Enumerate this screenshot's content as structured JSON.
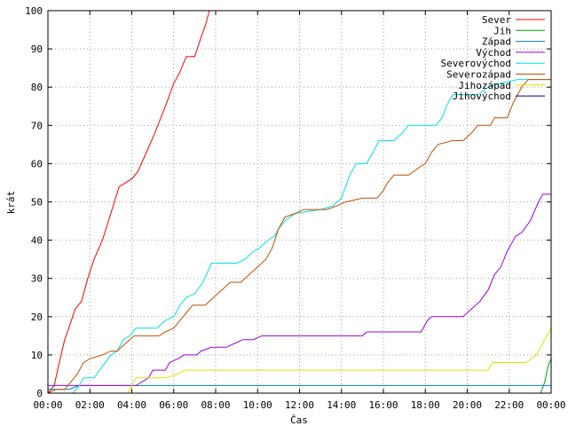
{
  "chart_data": {
    "type": "line",
    "title": "",
    "xlabel": "Čas",
    "ylabel": "krát",
    "xlim": [
      0,
      24
    ],
    "ylim": [
      0,
      100
    ],
    "x_ticks": [
      {
        "value": 0,
        "label": "00:00"
      },
      {
        "value": 2,
        "label": "02:00"
      },
      {
        "value": 4,
        "label": "04:00"
      },
      {
        "value": 6,
        "label": "06:00"
      },
      {
        "value": 8,
        "label": "08:00"
      },
      {
        "value": 10,
        "label": "10:00"
      },
      {
        "value": 12,
        "label": "12:00"
      },
      {
        "value": 14,
        "label": "14:00"
      },
      {
        "value": 16,
        "label": "16:00"
      },
      {
        "value": 18,
        "label": "18:00"
      },
      {
        "value": 20,
        "label": "20:00"
      },
      {
        "value": 22,
        "label": "22:00"
      },
      {
        "value": 24,
        "label": "00:00"
      }
    ],
    "y_ticks": [
      0,
      10,
      20,
      30,
      40,
      50,
      60,
      70,
      80,
      90,
      100
    ],
    "grid": true,
    "legend_position": "top-right",
    "series": [
      {
        "name": "Sever",
        "color": "#ff0000",
        "points": [
          [
            0,
            0
          ],
          [
            0.3,
            2
          ],
          [
            0.5,
            7
          ],
          [
            0.8,
            14
          ],
          [
            1.0,
            17
          ],
          [
            1.3,
            22
          ],
          [
            1.6,
            24
          ],
          [
            1.9,
            30
          ],
          [
            2.2,
            35
          ],
          [
            2.6,
            40
          ],
          [
            3.0,
            47
          ],
          [
            3.4,
            54
          ],
          [
            3.7,
            55
          ],
          [
            4.0,
            56
          ],
          [
            4.3,
            58
          ],
          [
            4.7,
            63
          ],
          [
            5.1,
            68
          ],
          [
            5.6,
            75
          ],
          [
            6.0,
            81
          ],
          [
            6.3,
            84
          ],
          [
            6.6,
            88
          ],
          [
            7.0,
            88
          ],
          [
            7.3,
            93
          ],
          [
            7.5,
            96
          ],
          [
            7.7,
            100
          ]
        ]
      },
      {
        "name": "Jih",
        "color": "#00a000",
        "points": [
          [
            23.5,
            0
          ],
          [
            23.7,
            3
          ],
          [
            23.85,
            7
          ],
          [
            24,
            9
          ]
        ]
      },
      {
        "name": "Západ",
        "color": "#0080c0",
        "points": [
          [
            0,
            1
          ],
          [
            1.0,
            1
          ],
          [
            1.5,
            2
          ],
          [
            24,
            2
          ]
        ]
      },
      {
        "name": "Východ",
        "color": "#a000e0",
        "points": [
          [
            0,
            2
          ],
          [
            3.5,
            2
          ],
          [
            4.2,
            2
          ],
          [
            4.5,
            3
          ],
          [
            4.8,
            4
          ],
          [
            5.0,
            6
          ],
          [
            5.6,
            6
          ],
          [
            5.8,
            8
          ],
          [
            6.2,
            9
          ],
          [
            6.5,
            10
          ],
          [
            7.1,
            10
          ],
          [
            7.3,
            11
          ],
          [
            7.8,
            12
          ],
          [
            8.5,
            12
          ],
          [
            8.9,
            13
          ],
          [
            9.3,
            14
          ],
          [
            9.8,
            14
          ],
          [
            10.2,
            15
          ],
          [
            11.0,
            15
          ],
          [
            15.0,
            15
          ],
          [
            15.2,
            16
          ],
          [
            17.8,
            16
          ],
          [
            18.1,
            19
          ],
          [
            18.3,
            20
          ],
          [
            19.8,
            20
          ],
          [
            20.2,
            22
          ],
          [
            20.6,
            24
          ],
          [
            21.0,
            27
          ],
          [
            21.3,
            31
          ],
          [
            21.6,
            33
          ],
          [
            21.9,
            37
          ],
          [
            22.3,
            41
          ],
          [
            22.6,
            42
          ],
          [
            23.0,
            45
          ],
          [
            23.4,
            50
          ],
          [
            23.6,
            52
          ],
          [
            24,
            52
          ]
        ]
      },
      {
        "name": "Severovýchod",
        "color": "#00e0e0",
        "points": [
          [
            0,
            0
          ],
          [
            1.2,
            0
          ],
          [
            1.5,
            2
          ],
          [
            1.7,
            4
          ],
          [
            2.2,
            4
          ],
          [
            2.6,
            7
          ],
          [
            3.0,
            10
          ],
          [
            3.3,
            11
          ],
          [
            3.6,
            14
          ],
          [
            3.9,
            15
          ],
          [
            4.2,
            17
          ],
          [
            5.2,
            17
          ],
          [
            5.6,
            19
          ],
          [
            6.0,
            20
          ],
          [
            6.3,
            23
          ],
          [
            6.6,
            25
          ],
          [
            7.0,
            26
          ],
          [
            7.4,
            29
          ],
          [
            7.8,
            34
          ],
          [
            8.2,
            34
          ],
          [
            9.0,
            34
          ],
          [
            9.4,
            35
          ],
          [
            9.8,
            37
          ],
          [
            10.1,
            38
          ],
          [
            10.5,
            40
          ],
          [
            10.8,
            41
          ],
          [
            11.0,
            43
          ],
          [
            11.3,
            45
          ],
          [
            11.8,
            47
          ],
          [
            13.0,
            48
          ],
          [
            13.6,
            49
          ],
          [
            14.0,
            51
          ],
          [
            14.4,
            57
          ],
          [
            14.7,
            60
          ],
          [
            15.2,
            60
          ],
          [
            15.5,
            63
          ],
          [
            15.8,
            66
          ],
          [
            16.5,
            66
          ],
          [
            16.9,
            68
          ],
          [
            17.2,
            70
          ],
          [
            18.5,
            70
          ],
          [
            18.8,
            72
          ],
          [
            19.0,
            75
          ],
          [
            19.3,
            78
          ],
          [
            20.5,
            78
          ],
          [
            21.0,
            80
          ],
          [
            21.6,
            81
          ],
          [
            22.4,
            82
          ],
          [
            23.0,
            82
          ],
          [
            24,
            82
          ]
        ]
      },
      {
        "name": "Severozápad",
        "color": "#c05000",
        "points": [
          [
            0,
            0
          ],
          [
            0.4,
            1
          ],
          [
            0.8,
            1
          ],
          [
            1.1,
            3
          ],
          [
            1.4,
            5
          ],
          [
            1.7,
            8
          ],
          [
            2.0,
            9
          ],
          [
            2.6,
            10
          ],
          [
            3.0,
            11
          ],
          [
            3.3,
            11
          ],
          [
            3.7,
            13
          ],
          [
            4.1,
            15
          ],
          [
            5.3,
            15
          ],
          [
            5.6,
            16
          ],
          [
            6.0,
            17
          ],
          [
            6.3,
            19
          ],
          [
            6.6,
            21
          ],
          [
            6.9,
            23
          ],
          [
            7.5,
            23
          ],
          [
            7.9,
            25
          ],
          [
            8.3,
            27
          ],
          [
            8.7,
            29
          ],
          [
            9.2,
            29
          ],
          [
            9.6,
            31
          ],
          [
            10.0,
            33
          ],
          [
            10.4,
            35
          ],
          [
            10.7,
            38
          ],
          [
            11.0,
            43
          ],
          [
            11.3,
            46
          ],
          [
            11.8,
            47
          ],
          [
            12.2,
            48
          ],
          [
            13.3,
            48
          ],
          [
            13.8,
            49
          ],
          [
            14.2,
            50
          ],
          [
            15.0,
            51
          ],
          [
            15.7,
            51
          ],
          [
            16.0,
            53
          ],
          [
            16.2,
            55
          ],
          [
            16.5,
            57
          ],
          [
            17.2,
            57
          ],
          [
            17.7,
            59
          ],
          [
            18.0,
            60
          ],
          [
            18.3,
            63
          ],
          [
            18.6,
            65
          ],
          [
            19.3,
            66
          ],
          [
            19.8,
            66
          ],
          [
            20.2,
            68
          ],
          [
            20.5,
            70
          ],
          [
            21.1,
            70
          ],
          [
            21.3,
            72
          ],
          [
            21.9,
            72
          ],
          [
            22.2,
            76
          ],
          [
            22.6,
            80
          ],
          [
            22.9,
            82
          ],
          [
            24,
            82
          ]
        ]
      },
      {
        "name": "Jihozápad",
        "color": "#e0e000",
        "points": [
          [
            0,
            0
          ],
          [
            3.8,
            0
          ],
          [
            4.0,
            2
          ],
          [
            4.2,
            4
          ],
          [
            4.9,
            4
          ],
          [
            5.6,
            4
          ],
          [
            6.2,
            5
          ],
          [
            6.5,
            6
          ],
          [
            21.0,
            6
          ],
          [
            21.2,
            8
          ],
          [
            22.8,
            8
          ],
          [
            23.3,
            10
          ],
          [
            23.6,
            13
          ],
          [
            23.8,
            15
          ],
          [
            24,
            17
          ]
        ]
      },
      {
        "name": "Jihovýchod",
        "color": "#000080",
        "points": [
          [
            0,
            0
          ],
          [
            24,
            0
          ]
        ]
      }
    ]
  }
}
